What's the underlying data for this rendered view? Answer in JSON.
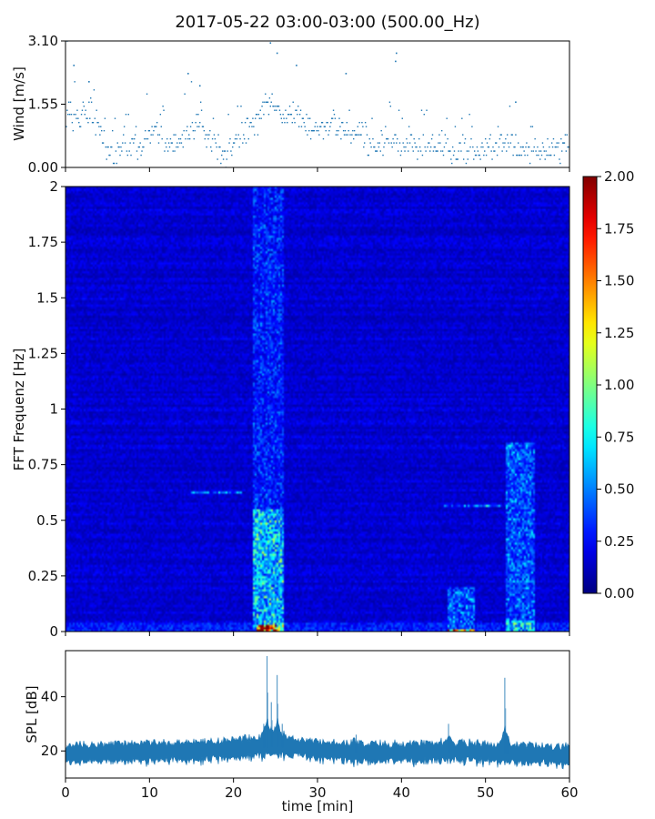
{
  "title": "2017-05-22 03:00-03:00 (500.00_Hz)",
  "chart_data": [
    {
      "type": "scatter",
      "panel": "wind",
      "ylabel": "Wind [m/s]",
      "ylim": [
        0,
        3.1
      ],
      "yticks": [
        "0.00",
        "1.55",
        "3.10"
      ],
      "xlim": [
        0,
        60
      ],
      "series_color": "#1f77b4",
      "x_step_min": 0.1,
      "y_quantum": 0.1,
      "profile": [
        {
          "x": 0,
          "y": 1.3
        },
        {
          "x": 1,
          "y": 1.2
        },
        {
          "x": 2,
          "y": 1.3
        },
        {
          "x": 3,
          "y": 1.2
        },
        {
          "x": 4,
          "y": 0.8
        },
        {
          "x": 5,
          "y": 0.4
        },
        {
          "x": 6,
          "y": 0.3
        },
        {
          "x": 7,
          "y": 0.7
        },
        {
          "x": 8,
          "y": 0.6
        },
        {
          "x": 9,
          "y": 0.5
        },
        {
          "x": 10,
          "y": 0.9
        },
        {
          "x": 11,
          "y": 0.9
        },
        {
          "x": 12,
          "y": 0.5
        },
        {
          "x": 13,
          "y": 0.5
        },
        {
          "x": 14,
          "y": 0.8
        },
        {
          "x": 15,
          "y": 1.0
        },
        {
          "x": 16,
          "y": 1.1
        },
        {
          "x": 17,
          "y": 0.7
        },
        {
          "x": 18,
          "y": 0.5
        },
        {
          "x": 19,
          "y": 0.4
        },
        {
          "x": 20,
          "y": 0.5
        },
        {
          "x": 21,
          "y": 0.8
        },
        {
          "x": 22,
          "y": 1.0
        },
        {
          "x": 23,
          "y": 1.1
        },
        {
          "x": 24,
          "y": 1.6
        },
        {
          "x": 25,
          "y": 1.6
        },
        {
          "x": 26,
          "y": 1.2
        },
        {
          "x": 27,
          "y": 1.3
        },
        {
          "x": 28,
          "y": 1.4
        },
        {
          "x": 29,
          "y": 1.0
        },
        {
          "x": 30,
          "y": 1.0
        },
        {
          "x": 31,
          "y": 0.9
        },
        {
          "x": 32,
          "y": 1.1
        },
        {
          "x": 33,
          "y": 0.8
        },
        {
          "x": 34,
          "y": 0.7
        },
        {
          "x": 35,
          "y": 0.9
        },
        {
          "x": 36,
          "y": 0.6
        },
        {
          "x": 37,
          "y": 0.5
        },
        {
          "x": 38,
          "y": 0.6
        },
        {
          "x": 39,
          "y": 0.7
        },
        {
          "x": 40,
          "y": 0.6
        },
        {
          "x": 41,
          "y": 0.6
        },
        {
          "x": 42,
          "y": 0.5
        },
        {
          "x": 43,
          "y": 0.5
        },
        {
          "x": 44,
          "y": 0.6
        },
        {
          "x": 45,
          "y": 0.5
        },
        {
          "x": 46,
          "y": 0.5
        },
        {
          "x": 47,
          "y": 0.4
        },
        {
          "x": 48,
          "y": 0.4
        },
        {
          "x": 49,
          "y": 0.4
        },
        {
          "x": 50,
          "y": 0.4
        },
        {
          "x": 51,
          "y": 0.5
        },
        {
          "x": 52,
          "y": 0.5
        },
        {
          "x": 53,
          "y": 0.7
        },
        {
          "x": 54,
          "y": 0.5
        },
        {
          "x": 55,
          "y": 0.4
        },
        {
          "x": 56,
          "y": 0.4
        },
        {
          "x": 57,
          "y": 0.4
        },
        {
          "x": 58,
          "y": 0.5
        },
        {
          "x": 59,
          "y": 0.6
        },
        {
          "x": 60,
          "y": 0.6
        }
      ],
      "peaks": [
        {
          "x": 0.2,
          "y": 3.1
        },
        {
          "x": 1.0,
          "y": 2.5
        },
        {
          "x": 2.8,
          "y": 2.1
        },
        {
          "x": 14.6,
          "y": 2.3
        },
        {
          "x": 16.0,
          "y": 2.0
        },
        {
          "x": 24.4,
          "y": 3.05
        },
        {
          "x": 25.2,
          "y": 2.8
        },
        {
          "x": 27.5,
          "y": 2.5
        },
        {
          "x": 33.4,
          "y": 2.3
        },
        {
          "x": 39.3,
          "y": 2.6
        },
        {
          "x": 39.4,
          "y": 2.8
        },
        {
          "x": 53.6,
          "y": 1.6
        }
      ]
    },
    {
      "type": "heatmap",
      "panel": "spectrogram",
      "ylabel": "FFT Frequenz [Hz]",
      "ylim": [
        0,
        2
      ],
      "yticks": [
        "0",
        "0.25",
        "0.5",
        "0.75",
        "1",
        "1.25",
        "1.5",
        "1.75",
        "2"
      ],
      "xlim": [
        0,
        60
      ],
      "colormap": "jet",
      "colorbar": {
        "vmin": 0,
        "vmax": 2,
        "ticks": [
          "0.00",
          "0.25",
          "0.50",
          "0.75",
          "1.00",
          "1.25",
          "1.50",
          "1.75",
          "2.00"
        ]
      },
      "background_level": 0.16,
      "low_freq_band": {
        "f_max": 0.04,
        "level": 0.3
      },
      "events": [
        {
          "t0": 22.3,
          "t1": 26.1,
          "f0": 0.0,
          "f1": 2.0,
          "level": 0.3
        },
        {
          "t0": 22.3,
          "t1": 26.1,
          "f0": 0.0,
          "f1": 0.55,
          "level": 0.6
        },
        {
          "t0": 22.8,
          "t1": 25.2,
          "f0": 0.0,
          "f1": 0.03,
          "level": 1.7
        },
        {
          "t0": 25.2,
          "t1": 26.0,
          "f0": 0.0,
          "f1": 0.03,
          "level": 1.0
        },
        {
          "t0": 45.5,
          "t1": 48.8,
          "f0": 0.0,
          "f1": 0.2,
          "level": 0.4
        },
        {
          "t0": 45.5,
          "t1": 48.8,
          "f0": 0.0,
          "f1": 0.01,
          "level": 1.3
        },
        {
          "t0": 52.5,
          "t1": 55.8,
          "f0": 0.0,
          "f1": 0.85,
          "level": 0.4
        },
        {
          "t0": 52.5,
          "t1": 55.8,
          "f0": 0.0,
          "f1": 0.05,
          "level": 0.65
        },
        {
          "t0": 15.0,
          "t1": 21.0,
          "f0": 0.62,
          "f1": 0.63,
          "level": 0.45
        },
        {
          "t0": 45.0,
          "t1": 52.0,
          "f0": 0.56,
          "f1": 0.57,
          "level": 0.45
        }
      ]
    },
    {
      "type": "area",
      "panel": "spl",
      "ylabel": "SPL [dB]",
      "ylim": [
        10,
        57
      ],
      "yticks": [
        "20",
        "40"
      ],
      "xlim": [
        0,
        60
      ],
      "xticks": [
        "0",
        "10",
        "20",
        "30",
        "40",
        "50",
        "60"
      ],
      "xlabel": "time [min]",
      "series_color": "#1f77b4",
      "baseline": [
        {
          "x": 0,
          "y": 18.5
        },
        {
          "x": 5,
          "y": 19.0
        },
        {
          "x": 10,
          "y": 19.5
        },
        {
          "x": 15,
          "y": 19.5
        },
        {
          "x": 20,
          "y": 20.5
        },
        {
          "x": 22,
          "y": 21.0
        },
        {
          "x": 25,
          "y": 21.5
        },
        {
          "x": 28,
          "y": 21.0
        },
        {
          "x": 30,
          "y": 20.0
        },
        {
          "x": 35,
          "y": 19.0
        },
        {
          "x": 40,
          "y": 19.0
        },
        {
          "x": 44,
          "y": 19.5
        },
        {
          "x": 47,
          "y": 19.5
        },
        {
          "x": 50,
          "y": 19.0
        },
        {
          "x": 55,
          "y": 18.5
        },
        {
          "x": 60,
          "y": 18.0
        }
      ],
      "band_halfwidth": 3,
      "spikes": [
        {
          "x": 23.6,
          "y": 30
        },
        {
          "x": 24.0,
          "y": 55
        },
        {
          "x": 24.5,
          "y": 38
        },
        {
          "x": 25.2,
          "y": 48
        },
        {
          "x": 25.8,
          "y": 30
        },
        {
          "x": 34.6,
          "y": 26
        },
        {
          "x": 45.6,
          "y": 30
        },
        {
          "x": 52.3,
          "y": 47
        },
        {
          "x": 52.6,
          "y": 26
        }
      ]
    }
  ]
}
